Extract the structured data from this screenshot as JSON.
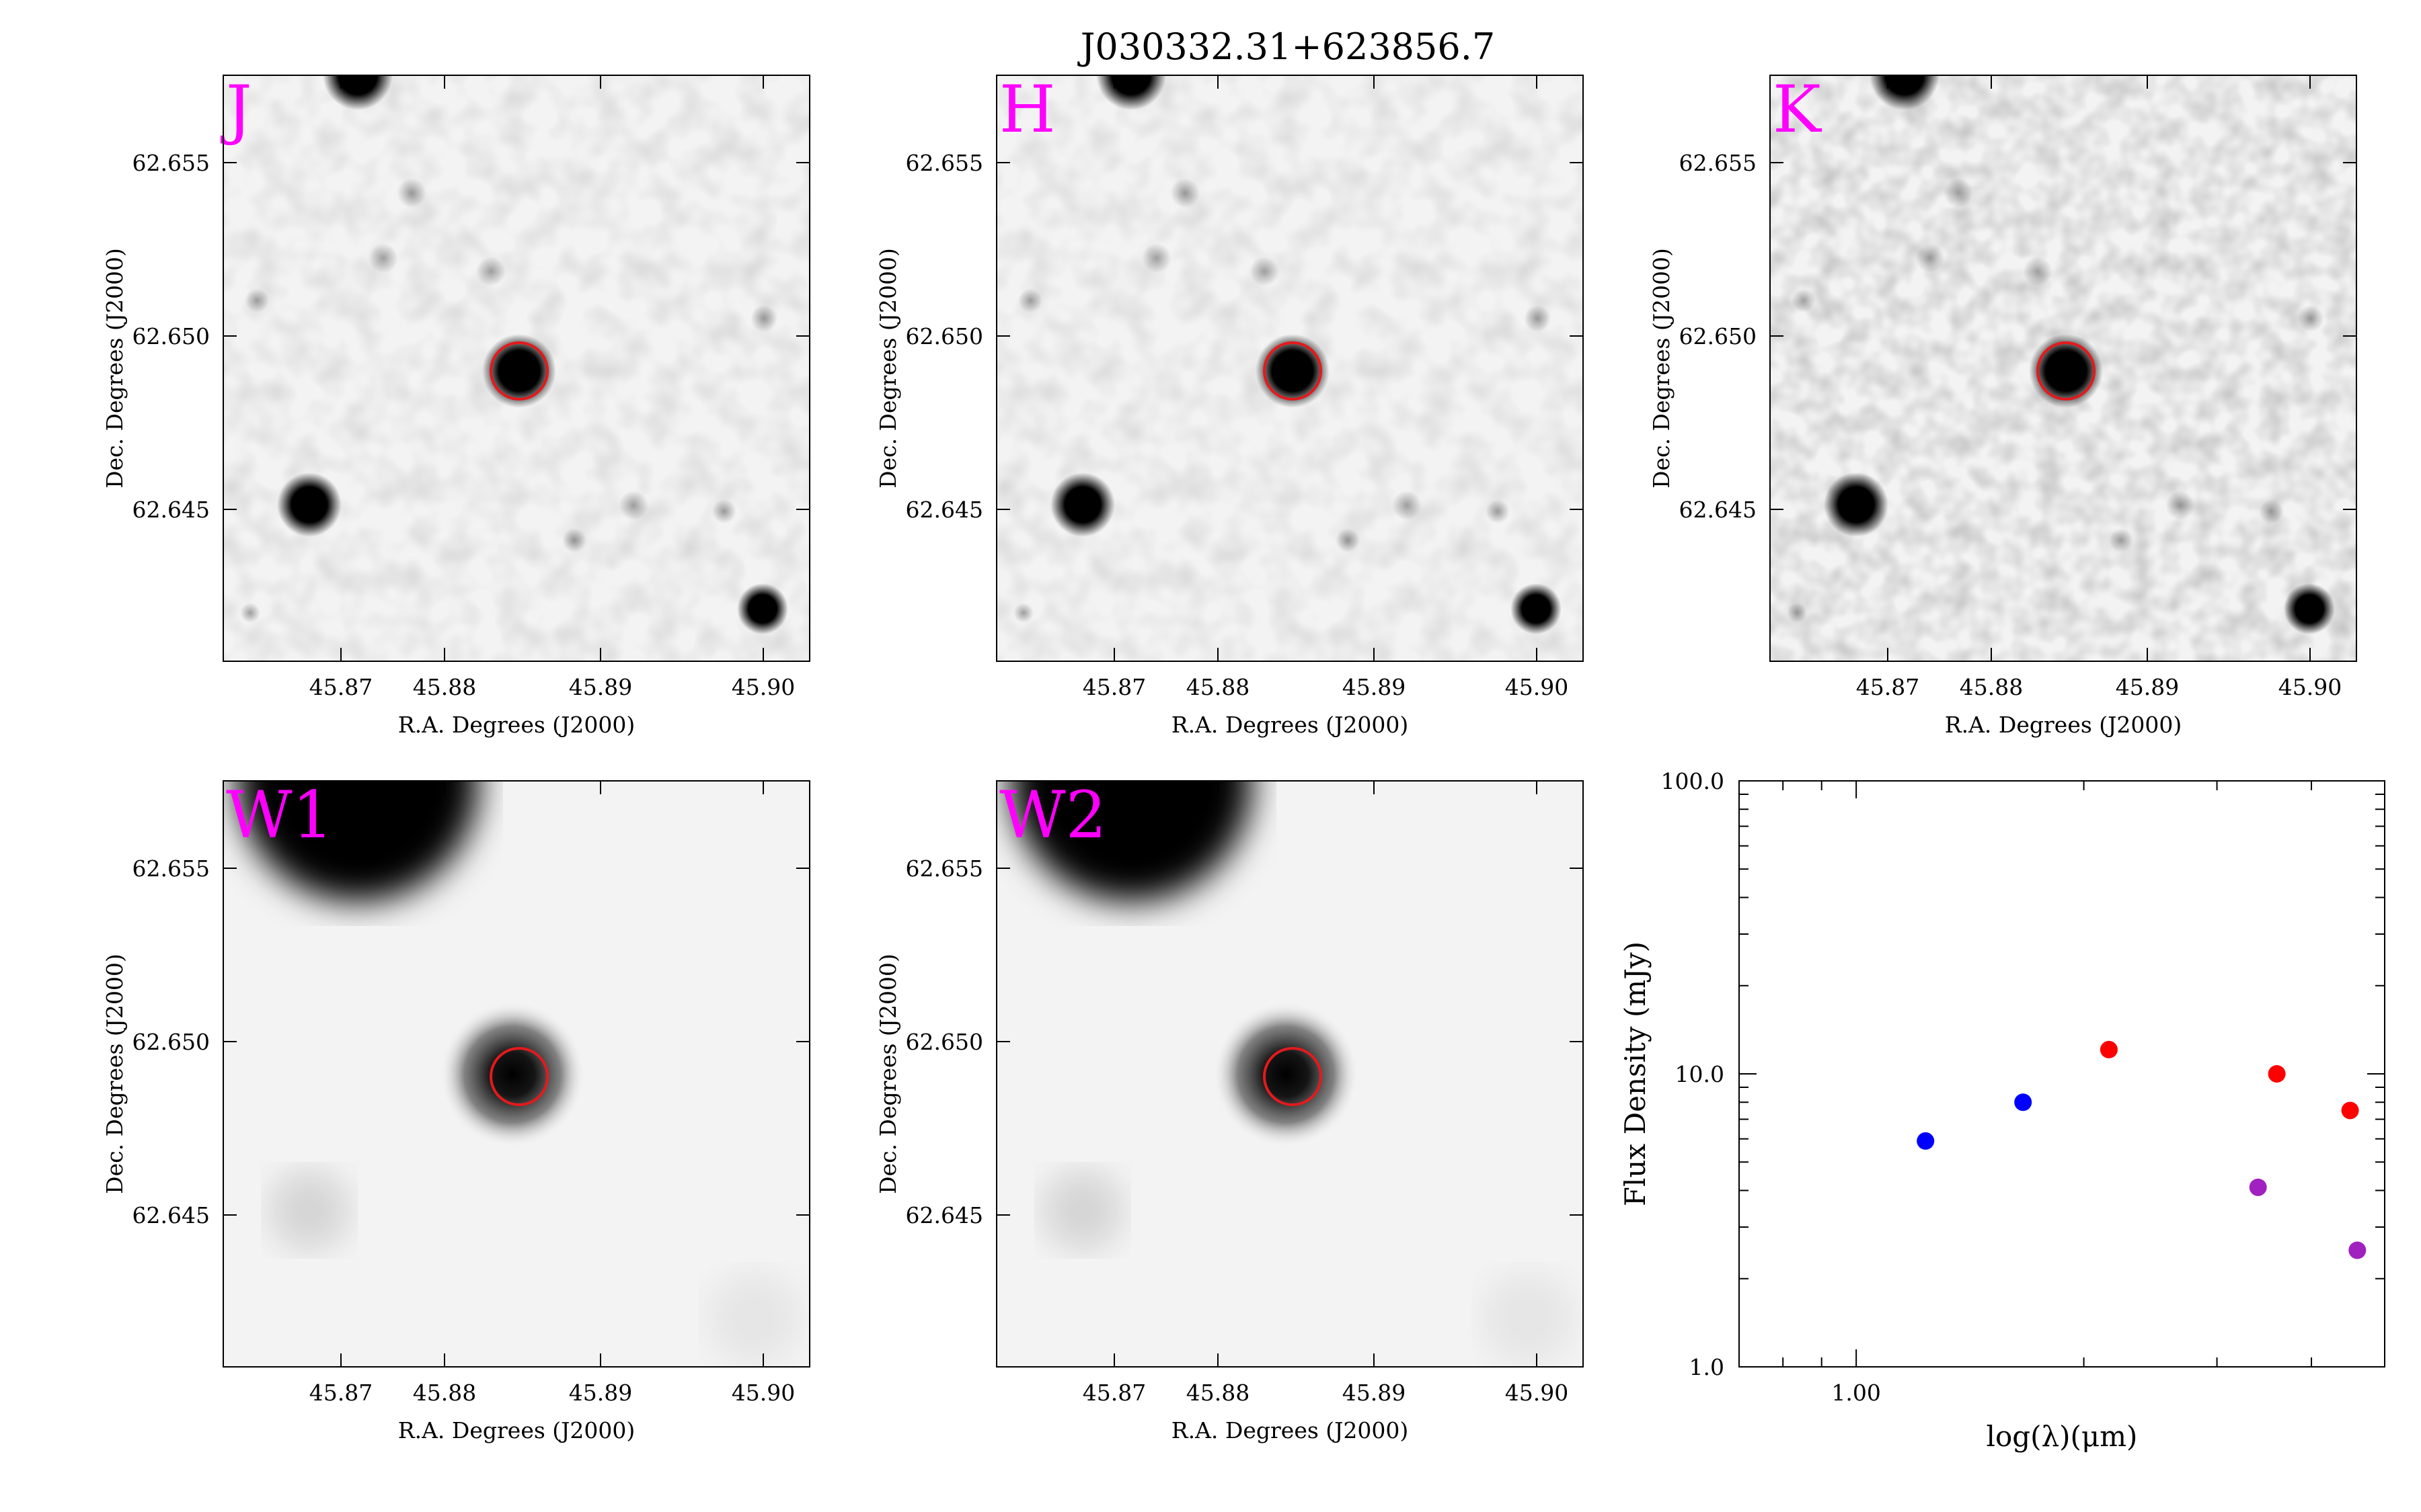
{
  "title": "J030332.31+623856.7",
  "colors": {
    "band_label": "#ff00ff",
    "aperture": "#e31a1c",
    "frame": "#000000",
    "sed_2mass": "#0000ff",
    "sed_irac": "#ff0000",
    "sed_wise": "#a020c0"
  },
  "panels": [
    {
      "band": "J",
      "type": "nir"
    },
    {
      "band": "H",
      "type": "nir"
    },
    {
      "band": "K",
      "type": "nir"
    },
    {
      "band": "W1",
      "type": "wise"
    },
    {
      "band": "W2",
      "type": "wise"
    }
  ],
  "image_axes": {
    "xlabel": "R.A. Degrees (J2000)",
    "ylabel": "Dec. Degrees (J2000)",
    "xticks": [
      "45.87",
      "45.88",
      "45.89",
      "45.90"
    ],
    "yticks": [
      "62.655",
      "62.650",
      "62.645"
    ]
  },
  "chart_data": {
    "type": "scatter",
    "xlabel": "log(λ)(μm)",
    "ylabel": "Flux Density (mJy)",
    "xscale": "log",
    "yscale": "log",
    "xlim": [
      0.7,
      5.0
    ],
    "ylim": [
      1.0,
      100.0
    ],
    "xtick_labels": [
      "1.00"
    ],
    "ytick_labels": [
      "1.0",
      "10.0",
      "100.0"
    ],
    "grid": false,
    "series": [
      {
        "color": "blue",
        "x": [
          1.235,
          1.662
        ],
        "y": [
          5.9,
          8.0
        ]
      },
      {
        "color": "red",
        "x": [
          2.159,
          3.6,
          4.5
        ],
        "y": [
          12.1,
          10.0,
          7.5
        ]
      },
      {
        "color": "purple",
        "x": [
          3.4,
          4.6
        ],
        "y": [
          4.1,
          2.5
        ]
      }
    ]
  }
}
